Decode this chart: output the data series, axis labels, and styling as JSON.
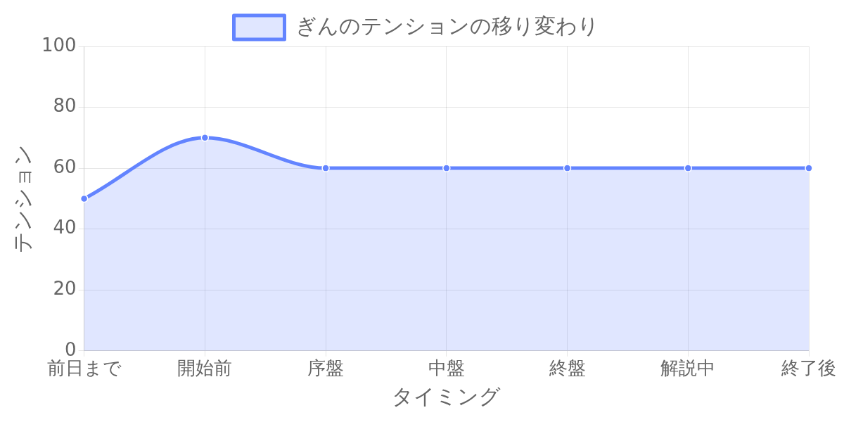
{
  "chart_data": {
    "type": "area",
    "categories": [
      "前日まで",
      "開始前",
      "序盤",
      "中盤",
      "終盤",
      "解説中",
      "終了後"
    ],
    "series": [
      {
        "name": "ぎんのテンションの移り変わり",
        "color": "#6384ff",
        "values": [
          50,
          70,
          60,
          60,
          60,
          60,
          60
        ]
      }
    ],
    "xlabel": "タイミング",
    "ylabel": "テンション",
    "ylim": [
      0,
      100
    ],
    "yticks": [
      0,
      20,
      40,
      60,
      80,
      100
    ],
    "grid": true,
    "legend": "top",
    "marker": "circle"
  }
}
